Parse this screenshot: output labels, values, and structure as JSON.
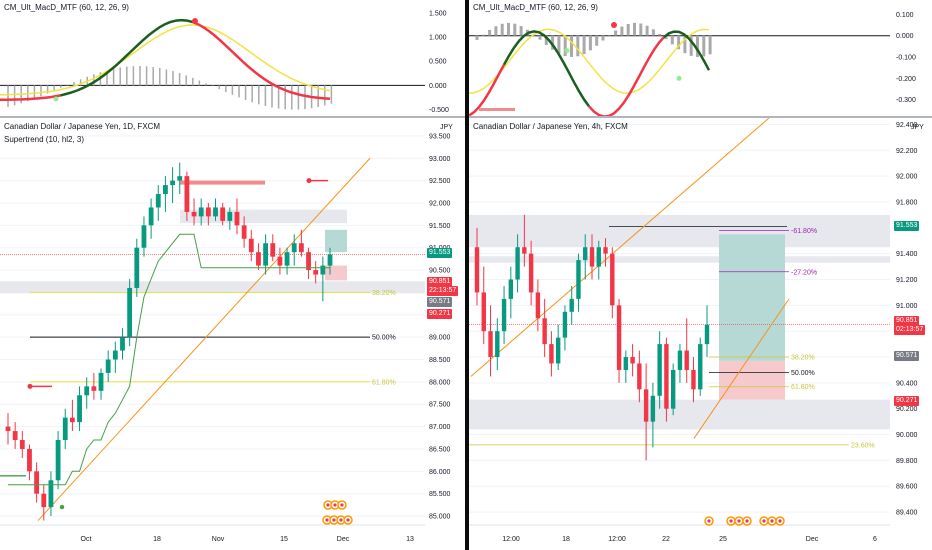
{
  "left": {
    "indicator_title": "CM_Ult_MacD_MTF (60, 12, 26, 9)",
    "indicator_axis": [
      "1.500",
      "1.000",
      "0.500",
      "0.000",
      "-0.500"
    ],
    "chart_title": "Canadian Dollar / Japanese Yen, 1D, FXCM",
    "supertrend_label": "Supertrend (10, hl2, 3)",
    "currency": "JPY",
    "price_axis": [
      "93.500",
      "93.000",
      "92.500",
      "92.000",
      "91.500",
      "91.000",
      "90.500",
      "90.000",
      "89.500",
      "89.000",
      "88.500",
      "88.000",
      "87.500",
      "87.000",
      "86.500",
      "86.000",
      "85.500",
      "85.000"
    ],
    "time_axis": [
      "Oct",
      "18",
      "Nov",
      "15",
      "Dec",
      "13"
    ],
    "fib_labels": [
      "50.00%",
      "61.80%",
      "38.20%"
    ],
    "tags": {
      "green": "91.553",
      "red_price": "90.851",
      "red_timer": "22:13:57",
      "gray": "90.571",
      "red2": "90.271"
    }
  },
  "right": {
    "indicator_title": "CM_Ult_MacD_MTF (60, 12, 26, 9)",
    "indicator_axis": [
      "0.100",
      "0.000",
      "-0.100",
      "-0.200",
      "-0.300"
    ],
    "chart_title": "Canadian Dollar / Japanese Yen, 4h, FXCM",
    "currency": "JPY",
    "price_axis": [
      "92.400",
      "92.200",
      "92.000",
      "91.800",
      "91.600",
      "91.400",
      "91.200",
      "91.000",
      "90.800",
      "90.600",
      "90.400",
      "90.200",
      "90.000",
      "89.800",
      "89.600",
      "89.400"
    ],
    "time_axis": [
      "12:00",
      "18",
      "12:00",
      "22",
      "25",
      "Dec",
      "6"
    ],
    "fib_labels": [
      "-61.80%",
      "-27.20%",
      "50.00%",
      "38.20%",
      "61.80%",
      "23.60%"
    ],
    "tags": {
      "green": "91.553",
      "red_price": "90.851",
      "red_timer": "02:13:57",
      "gray": "90.571",
      "red2": "90.271"
    }
  },
  "colors": {
    "up": "#089981",
    "down": "#f23645",
    "macd_fast": "#1b5e20",
    "macd_slow": "#f0e442",
    "macd_red": "#f23645",
    "fib_yellow": "#e5e34a",
    "trendline": "#f7931a",
    "supertrend": "#43a047"
  },
  "chart_data": [
    {
      "type": "candlestick",
      "title": "Canadian Dollar / Japanese Yen, 1D, FXCM",
      "ylim": [
        84.8,
        93.9
      ],
      "x_ticks": [
        "Oct",
        "18",
        "Nov",
        "15",
        "Dec",
        "13"
      ],
      "ohlc": [
        [
          87.0,
          87.3,
          86.6,
          86.9
        ],
        [
          86.9,
          87.1,
          86.5,
          86.7
        ],
        [
          86.7,
          86.9,
          86.3,
          86.5
        ],
        [
          86.5,
          86.6,
          85.8,
          86.0
        ],
        [
          86.0,
          86.2,
          85.3,
          85.5
        ],
        [
          85.5,
          85.7,
          84.9,
          85.2
        ],
        [
          85.2,
          86.0,
          85.0,
          85.8
        ],
        [
          85.8,
          86.9,
          85.6,
          86.7
        ],
        [
          86.7,
          87.4,
          86.5,
          87.2
        ],
        [
          87.2,
          87.6,
          86.9,
          87.1
        ],
        [
          87.1,
          87.9,
          86.9,
          87.7
        ],
        [
          87.7,
          88.1,
          87.4,
          87.9
        ],
        [
          87.9,
          88.2,
          87.6,
          87.8
        ],
        [
          87.8,
          88.3,
          87.6,
          88.2
        ],
        [
          88.2,
          88.7,
          88.0,
          88.5
        ],
        [
          88.5,
          88.9,
          88.2,
          88.7
        ],
        [
          88.7,
          89.2,
          88.5,
          89.0
        ],
        [
          89.0,
          90.3,
          88.8,
          90.1
        ],
        [
          90.1,
          91.2,
          89.9,
          91.0
        ],
        [
          91.0,
          91.7,
          90.8,
          91.5
        ],
        [
          91.5,
          92.1,
          91.2,
          91.9
        ],
        [
          91.9,
          92.4,
          91.6,
          92.2
        ],
        [
          92.2,
          92.6,
          91.8,
          92.4
        ],
        [
          92.4,
          92.8,
          92.0,
          92.5
        ],
        [
          92.5,
          92.9,
          92.2,
          92.6
        ],
        [
          92.6,
          92.7,
          91.6,
          91.8
        ],
        [
          91.8,
          92.1,
          91.5,
          91.7
        ],
        [
          91.7,
          92.1,
          91.5,
          91.9
        ],
        [
          91.9,
          92.0,
          91.5,
          91.7
        ],
        [
          91.7,
          92.1,
          91.6,
          91.9
        ],
        [
          91.9,
          92.0,
          91.5,
          91.6
        ],
        [
          91.6,
          91.9,
          91.4,
          91.8
        ],
        [
          91.8,
          92.1,
          91.3,
          91.5
        ],
        [
          91.5,
          91.7,
          91.0,
          91.2
        ],
        [
          91.2,
          91.4,
          90.7,
          90.9
        ],
        [
          90.9,
          91.1,
          90.5,
          90.6
        ],
        [
          90.6,
          91.3,
          90.4,
          91.1
        ],
        [
          91.1,
          91.3,
          90.7,
          90.8
        ],
        [
          90.8,
          91.0,
          90.4,
          90.6
        ],
        [
          90.6,
          91.0,
          90.4,
          90.9
        ],
        [
          90.9,
          91.3,
          90.6,
          91.1
        ],
        [
          91.1,
          91.4,
          90.8,
          90.9
        ],
        [
          90.9,
          91.0,
          90.3,
          90.5
        ],
        [
          90.5,
          90.7,
          90.2,
          90.4
        ],
        [
          90.4,
          90.8,
          89.8,
          90.6
        ],
        [
          90.6,
          91.0,
          90.4,
          90.85
        ]
      ],
      "supertrend_start": 85.2,
      "fib_levels": [
        {
          "label": "50.00%",
          "value": 89.0
        },
        {
          "label": "61.80%",
          "value": 88.0
        },
        {
          "label": "38.20%",
          "value": 90.0
        }
      ]
    },
    {
      "type": "candlestick",
      "title": "Canadian Dollar / Japanese Yen, 4h, FXCM",
      "ylim": [
        89.3,
        92.45
      ],
      "x_ticks": [
        "12:00",
        "18",
        "12:00",
        "22",
        "25",
        "Dec",
        "6"
      ],
      "ohlc": [
        [
          91.45,
          91.6,
          91.0,
          91.1
        ],
        [
          91.1,
          91.3,
          90.7,
          90.8
        ],
        [
          90.8,
          91.0,
          90.45,
          90.6
        ],
        [
          90.6,
          90.9,
          90.5,
          90.8
        ],
        [
          90.8,
          91.15,
          90.7,
          91.05
        ],
        [
          91.05,
          91.3,
          90.9,
          91.2
        ],
        [
          91.2,
          91.55,
          91.1,
          91.45
        ],
        [
          91.45,
          91.7,
          91.3,
          91.4
        ],
        [
          91.4,
          91.5,
          91.0,
          91.1
        ],
        [
          91.1,
          91.2,
          90.8,
          90.9
        ],
        [
          90.9,
          91.05,
          90.6,
          90.7
        ],
        [
          90.7,
          90.8,
          90.45,
          90.55
        ],
        [
          90.55,
          90.85,
          90.5,
          90.75
        ],
        [
          90.75,
          91.0,
          90.65,
          90.95
        ],
        [
          90.95,
          91.15,
          90.85,
          91.05
        ],
        [
          91.05,
          91.4,
          90.95,
          91.35
        ],
        [
          91.35,
          91.55,
          91.2,
          91.45
        ],
        [
          91.45,
          91.55,
          91.2,
          91.3
        ],
        [
          91.3,
          91.5,
          91.2,
          91.45
        ],
        [
          91.45,
          91.52,
          91.3,
          91.4
        ],
        [
          91.4,
          91.45,
          90.9,
          91.0
        ],
        [
          91.0,
          91.05,
          90.4,
          90.5
        ],
        [
          90.5,
          90.65,
          90.4,
          90.6
        ],
        [
          90.6,
          90.7,
          90.45,
          90.55
        ],
        [
          90.55,
          90.65,
          90.25,
          90.35
        ],
        [
          90.35,
          90.55,
          89.8,
          90.1
        ],
        [
          90.1,
          90.4,
          89.9,
          90.3
        ],
        [
          90.3,
          90.8,
          90.2,
          90.7
        ],
        [
          90.7,
          90.75,
          90.1,
          90.2
        ],
        [
          90.2,
          90.55,
          90.15,
          90.5
        ],
        [
          90.5,
          90.7,
          90.4,
          90.65
        ],
        [
          90.65,
          90.9,
          90.4,
          90.5
        ],
        [
          90.5,
          90.6,
          90.25,
          90.35
        ],
        [
          90.35,
          90.75,
          90.3,
          90.7
        ],
        [
          90.7,
          91.0,
          90.6,
          90.85
        ]
      ],
      "fib_levels": [
        {
          "label": "-61.80%",
          "value": 91.58
        },
        {
          "label": "-27.20%",
          "value": 91.26
        },
        {
          "label": "50.00%",
          "value": 90.48
        },
        {
          "label": "38.20%",
          "value": 90.6
        },
        {
          "label": "61.80%",
          "value": 90.37
        },
        {
          "label": "23.60%",
          "value": 89.92
        }
      ]
    }
  ]
}
